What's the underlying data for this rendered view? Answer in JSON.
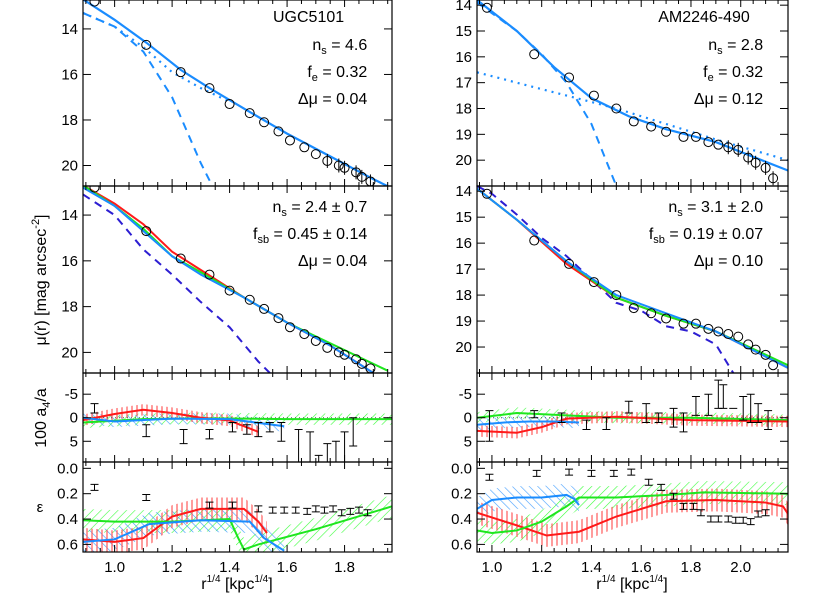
{
  "figure": {
    "ylabel_profile": "μ(r)  [mag arcsec",
    "ylabel_profile_sup": "-2",
    "ylabel_profile_end": "]",
    "ylabel_a4": "100 a",
    "ylabel_a4_sub": "4",
    "ylabel_a4_end": "/a",
    "ylabel_eps": "ε",
    "xlabel": "r",
    "xlabel_sup": "1/4",
    "xlabel_mid": " [kpc",
    "xlabel_sup2": "1/4",
    "xlabel_end": "]"
  },
  "colors": {
    "fit": "#1a8cff",
    "red": "#ff1a1a",
    "green": "#1ee61e",
    "blue": "#1a8cff",
    "navy": "#2d1ed2",
    "data": "#000000"
  },
  "chart_data": [
    {
      "id": "UGC5101",
      "type": "line",
      "title": "UGC5101",
      "xlabel": "r^1/4 [kpc^1/4]",
      "xlim": [
        0.89,
        1.965
      ],
      "xticks": [
        "1.0",
        "1.2",
        "1.4",
        "1.6",
        "1.8"
      ],
      "panels": {
        "fit": {
          "ylabel": "μ(r) [mag arcsec^-2]",
          "ylim": [
            20.9,
            12.73
          ],
          "yticks": [
            "14",
            "16",
            "18",
            "20"
          ],
          "annotations": [
            "n_s = 4.6",
            "f_e = 0.32",
            "Δμ = 0.04"
          ],
          "data_points": {
            "x": [
              0.93,
              1.11,
              1.23,
              1.33,
              1.4,
              1.47,
              1.52,
              1.57,
              1.61,
              1.66,
              1.7,
              1.74,
              1.78,
              1.8,
              1.84,
              1.86,
              1.89
            ],
            "y": [
              12.8,
              14.7,
              15.9,
              16.6,
              17.3,
              17.7,
              18.1,
              18.5,
              18.9,
              19.2,
              19.5,
              19.8,
              20.0,
              20.1,
              20.3,
              20.5,
              20.7
            ]
          },
          "total_fit": {
            "x": [
              0.89,
              1.0,
              1.11,
              1.23,
              1.33,
              1.45,
              1.6,
              1.75,
              1.9,
              1.965
            ],
            "y": [
              12.7,
              13.6,
              14.6,
              15.8,
              16.6,
              17.5,
              18.6,
              19.6,
              20.6,
              21.0
            ]
          },
          "bulge_dashed": {
            "x": [
              0.89,
              1.0,
              1.1,
              1.2,
              1.3,
              1.34
            ],
            "y": [
              13.3,
              13.9,
              15.0,
              17.0,
              19.9,
              20.9
            ]
          },
          "disk_dotted": {
            "x": [
              0.89,
              1.0,
              1.1,
              1.2,
              1.3,
              1.4
            ],
            "y": [
              13.3,
              13.9,
              14.8,
              15.9,
              16.6,
              17.2
            ]
          }
        },
        "sb": {
          "ylim": [
            20.9,
            12.73
          ],
          "yticks": [
            "14",
            "16",
            "18",
            "20"
          ],
          "annotations": [
            "n_s = 2.4 ± 0.7",
            "f_sb = 0.45 ± 0.14",
            "Δμ = 0.04"
          ],
          "red": {
            "x": [
              0.89,
              1.0,
              1.1,
              1.2,
              1.3,
              1.45,
              1.6,
              1.75,
              1.9
            ],
            "y": [
              12.7,
              13.5,
              14.4,
              15.6,
              16.4,
              17.6,
              18.7,
              19.7,
              20.9
            ]
          },
          "green": {
            "x": [
              0.89,
              1.0,
              1.1,
              1.2,
              1.3,
              1.45,
              1.6,
              1.75,
              1.95
            ],
            "y": [
              12.7,
              13.6,
              14.6,
              15.8,
              16.5,
              17.6,
              18.7,
              19.6,
              20.8
            ]
          },
          "blue": {
            "x": [
              0.89,
              1.0,
              1.1,
              1.2,
              1.3,
              1.45,
              1.6,
              1.75,
              1.9
            ],
            "y": [
              12.8,
              13.6,
              14.7,
              15.8,
              16.6,
              17.6,
              18.7,
              19.7,
              20.9
            ]
          },
          "navy_dashed": {
            "x": [
              0.89,
              1.0,
              1.1,
              1.2,
              1.3,
              1.4,
              1.5,
              1.54
            ],
            "y": [
              13.1,
              14.0,
              15.5,
              16.6,
              17.8,
              18.9,
              20.4,
              20.9
            ]
          }
        },
        "a4": {
          "ylabel": "100 a4/a",
          "ylim": [
            9.4,
            -9.5
          ],
          "yticks": [
            "5",
            "0",
            "-5"
          ],
          "errorbars": {
            "x": [
              0.93,
              1.11,
              1.24,
              1.33,
              1.41,
              1.46,
              1.5,
              1.54,
              1.58,
              1.64,
              1.68,
              1.71,
              1.74,
              1.77,
              1.8,
              1.83
            ],
            "lo": [
              -3,
              1.5,
              2.5,
              2.5,
              1,
              1.5,
              1,
              1,
              1,
              2.5,
              3,
              8,
              5.5,
              5,
              3,
              0
            ],
            "hi": [
              -1,
              4,
              5.5,
              4.5,
              3,
              3.5,
              4,
              3,
              5,
              9.5,
              9.5,
              9.5,
              9.5,
              9.5,
              9.5,
              6
            ]
          },
          "red": {
            "x": [
              0.89,
              1.0,
              1.1,
              1.2,
              1.3,
              1.4,
              1.5
            ],
            "y": [
              0.5,
              -0.8,
              -1.7,
              -1.0,
              0.0,
              0.6,
              3.0
            ]
          },
          "green": {
            "x": [
              0.89,
              1.1,
              1.3,
              1.6,
              1.965
            ],
            "y": [
              1.0,
              0.3,
              0.1,
              0.3,
              0.3
            ]
          },
          "blue": {
            "x": [
              0.89,
              1.0,
              1.2,
              1.4,
              1.59
            ],
            "y": [
              0.0,
              0.8,
              0.2,
              0.3,
              1.8
            ]
          },
          "zero_line": 0
        },
        "eps": {
          "ylabel": "ε",
          "ylim": [
            0.66,
            -0.05
          ],
          "yticks": [
            "0.0",
            "0.2",
            "0.4",
            "0.6"
          ],
          "errorbars": {
            "x": [
              0.93,
              1.11,
              1.33,
              1.41,
              1.5,
              1.55,
              1.59,
              1.63,
              1.67,
              1.7,
              1.73,
              1.76,
              1.79,
              1.82,
              1.85,
              1.88
            ],
            "y": [
              0.15,
              0.23,
              0.29,
              0.29,
              0.32,
              0.33,
              0.33,
              0.33,
              0.34,
              0.32,
              0.33,
              0.32,
              0.35,
              0.34,
              0.33,
              0.35
            ]
          },
          "red": {
            "x": [
              0.89,
              1.0,
              1.1,
              1.2,
              1.3,
              1.45,
              1.5,
              1.53
            ],
            "y": [
              0.56,
              0.58,
              0.55,
              0.38,
              0.32,
              0.32,
              0.42,
              0.51
            ]
          },
          "green": {
            "x": [
              0.89,
              1.0,
              1.2,
              1.4,
              1.43,
              1.45,
              1.5,
              1.7,
              1.965
            ],
            "y": [
              0.41,
              0.42,
              0.42,
              0.4,
              0.55,
              0.64,
              0.6,
              0.48,
              0.3
            ]
          },
          "blue": {
            "x": [
              0.89,
              1.0,
              1.12,
              1.3,
              1.47,
              1.52,
              1.59
            ],
            "y": [
              0.58,
              0.56,
              0.44,
              0.41,
              0.42,
              0.55,
              0.65
            ]
          }
        }
      }
    },
    {
      "id": "AM2246-490",
      "type": "line",
      "title": "AM2246-490",
      "xlabel": "r^1/4 [kpc^1/4]",
      "xlim": [
        0.94,
        2.19
      ],
      "xticks": [
        "1.0",
        "1.2",
        "1.4",
        "1.6",
        "1.8",
        "2.0"
      ],
      "panels": {
        "fit": {
          "ylim": [
            21.0,
            13.8
          ],
          "yticks": [
            "14",
            "15",
            "16",
            "17",
            "18",
            "19",
            "20"
          ],
          "annotations": [
            "n_s = 2.8",
            "f_e = 0.32",
            "Δμ = 0.12"
          ],
          "data_points": {
            "x": [
              0.98,
              1.17,
              1.31,
              1.41,
              1.5,
              1.57,
              1.64,
              1.7,
              1.77,
              1.82,
              1.87,
              1.91,
              1.95,
              1.99,
              2.03,
              2.06,
              2.1,
              2.13
            ],
            "y": [
              14.1,
              15.9,
              16.8,
              17.5,
              18.0,
              18.5,
              18.7,
              18.9,
              19.1,
              19.1,
              19.3,
              19.4,
              19.5,
              19.6,
              19.9,
              20.1,
              20.3,
              20.7
            ]
          },
          "total_fit": {
            "x": [
              0.94,
              1.1,
              1.25,
              1.4,
              1.55,
              1.7,
              1.9,
              2.19
            ],
            "y": [
              13.8,
              15.0,
              16.4,
              17.6,
              18.3,
              18.8,
              19.3,
              20.4
            ]
          },
          "bulge_dashed": {
            "x": [
              0.94,
              1.1,
              1.2,
              1.3,
              1.4,
              1.5
            ],
            "y": [
              13.9,
              15.0,
              15.9,
              17.0,
              18.6,
              21.0
            ]
          },
          "disk_dotted": {
            "x": [
              0.94,
              1.1,
              1.3,
              1.5,
              1.7,
              1.9,
              2.19
            ],
            "y": [
              16.6,
              17.0,
              17.5,
              18.0,
              18.6,
              19.2,
              20.0
            ]
          }
        },
        "sb": {
          "ylim": [
            21.0,
            13.8
          ],
          "yticks": [
            "14",
            "15",
            "16",
            "17",
            "18",
            "19",
            "20"
          ],
          "annotations": [
            "n_s = 3.1 ± 2.0",
            "f_sb = 0.19 ± 0.07",
            "Δμ = 0.10"
          ],
          "red": {
            "x": [
              0.94,
              1.1,
              1.3,
              1.5,
              1.7,
              1.9,
              2.19
            ],
            "y": [
              13.9,
              15.1,
              16.8,
              18.1,
              18.8,
              19.4,
              20.8
            ]
          },
          "green": {
            "x": [
              0.94,
              1.1,
              1.3,
              1.5,
              1.7,
              1.9,
              2.19
            ],
            "y": [
              13.9,
              15.1,
              16.7,
              18.1,
              18.8,
              19.4,
              20.7
            ]
          },
          "blue": {
            "x": [
              0.94,
              1.1,
              1.3,
              1.5,
              1.7,
              1.9,
              2.19
            ],
            "y": [
              13.9,
              15.1,
              16.7,
              18.0,
              18.7,
              19.4,
              20.8
            ]
          },
          "navy_dashed": {
            "x": [
              0.94,
              1.0,
              1.1,
              1.2,
              1.3,
              1.4,
              1.5,
              1.6,
              1.7,
              1.8,
              1.9,
              1.97
            ],
            "y": [
              13.8,
              14.1,
              14.9,
              15.8,
              16.5,
              17.4,
              18.3,
              18.6,
              19.2,
              19.4,
              19.9,
              21.0
            ]
          }
        },
        "a4": {
          "ylim": [
            9.4,
            -9.5
          ],
          "yticks": [
            "5",
            "0",
            "-5"
          ],
          "errorbars": {
            "x": [
              0.99,
              1.17,
              1.28,
              1.38,
              1.46,
              1.55,
              1.62,
              1.67,
              1.73,
              1.77,
              1.82,
              1.87,
              1.91,
              1.93,
              1.97,
              2.01,
              2.04,
              2.07,
              2.11
            ],
            "lo": [
              -1.5,
              -1.5,
              -1,
              0.5,
              0,
              -3.5,
              -3,
              -1,
              -2,
              -1,
              -4.5,
              -5,
              -8,
              -7,
              -2,
              -4.5,
              -5,
              -3,
              -1.5
            ],
            "hi": [
              5,
              0,
              1,
              2.5,
              2.5,
              -1,
              1,
              1,
              2,
              3,
              -0.5,
              -0.5,
              -2,
              -2,
              -2,
              0.5,
              1,
              1,
              2.5
            ]
          },
          "red": {
            "x": [
              0.94,
              1.1,
              1.2,
              1.3,
              1.5,
              1.8,
              2.19
            ],
            "y": [
              2.8,
              3.2,
              2.0,
              0.2,
              -0.2,
              0.5,
              0.8
            ]
          },
          "green": {
            "x": [
              0.94,
              1.1,
              1.3,
              1.5,
              1.8,
              2.19
            ],
            "y": [
              0.0,
              -1.0,
              -0.5,
              0.0,
              0.0,
              0.5
            ]
          },
          "blue": {
            "x": [
              0.94,
              1.05,
              1.15,
              1.25,
              1.35
            ],
            "y": [
              1.5,
              1.0,
              0.8,
              0.8,
              1.0
            ]
          }
        },
        "eps": {
          "ylim": [
            0.66,
            -0.05
          ],
          "yticks": [
            "0.0",
            "0.2",
            "0.4",
            "0.6"
          ],
          "errorbars": {
            "x": [
              0.99,
              1.18,
              1.31,
              1.4,
              1.49,
              1.56,
              1.63,
              1.68,
              1.73,
              1.77,
              1.81,
              1.84,
              1.88,
              1.91,
              1.95,
              1.98,
              2.01,
              2.04,
              2.07,
              2.1
            ],
            "y": [
              0.07,
              0.04,
              0.03,
              0.04,
              0.04,
              0.03,
              0.11,
              0.15,
              0.22,
              0.3,
              0.3,
              0.35,
              0.4,
              0.4,
              0.4,
              0.41,
              0.41,
              0.42,
              0.36,
              0.35
            ]
          },
          "red": {
            "x": [
              0.94,
              1.1,
              1.22,
              1.35,
              1.5,
              1.7,
              1.9,
              2.1,
              2.17,
              2.19
            ],
            "y": [
              0.35,
              0.45,
              0.53,
              0.5,
              0.38,
              0.26,
              0.25,
              0.27,
              0.3,
              0.36
            ]
          },
          "green": {
            "x": [
              0.94,
              1.0,
              1.1,
              1.2,
              1.3,
              1.35,
              1.5,
              1.7,
              1.85,
              2.19
            ],
            "y": [
              0.49,
              0.51,
              0.49,
              0.42,
              0.3,
              0.23,
              0.23,
              0.21,
              0.19,
              0.2
            ]
          },
          "blue": {
            "x": [
              0.94,
              1.0,
              1.1,
              1.2,
              1.3,
              1.33,
              1.35
            ],
            "y": [
              0.32,
              0.25,
              0.23,
              0.23,
              0.21,
              0.24,
              0.29
            ]
          }
        }
      }
    }
  ]
}
